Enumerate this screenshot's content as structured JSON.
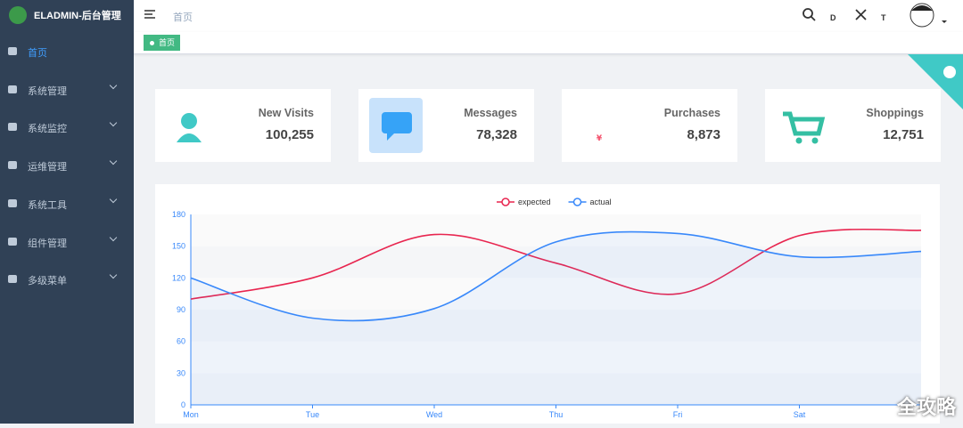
{
  "brand": "ELADMIN-后台管理",
  "sidebar": [
    "首页",
    "系统管理",
    "系统监控",
    "运维管理",
    "系统工具",
    "组件管理",
    "多级菜单"
  ],
  "breadcrumb": "首页",
  "tag": "首页",
  "cards": [
    {
      "label": "New Visits",
      "value": "100,255",
      "color": "#40c9c6"
    },
    {
      "label": "Messages",
      "value": "78,328",
      "color": "#36a3f7"
    },
    {
      "label": "Purchases",
      "value": "8,873",
      "color": "#f4516c"
    },
    {
      "label": "Shoppings",
      "value": "12,751",
      "color": "#34bfa3"
    }
  ],
  "chart_data": {
    "type": "line",
    "categories": [
      "Mon",
      "Tue",
      "Wed",
      "Thu",
      "Fri",
      "Sat",
      null
    ],
    "series": [
      {
        "name": "expected",
        "color": "#e8254f",
        "values": [
          100,
          120,
          161,
          134,
          105,
          160,
          165
        ]
      },
      {
        "name": "actual",
        "color": "#3888fa",
        "values": [
          120,
          82,
          91,
          154,
          162,
          140,
          145
        ],
        "area": true
      }
    ],
    "ylim": [
      0,
      180
    ],
    "yticks": [
      0,
      30,
      60,
      90,
      120,
      150,
      180
    ],
    "legend": "top",
    "grid": true
  },
  "watermark": "全攻略"
}
